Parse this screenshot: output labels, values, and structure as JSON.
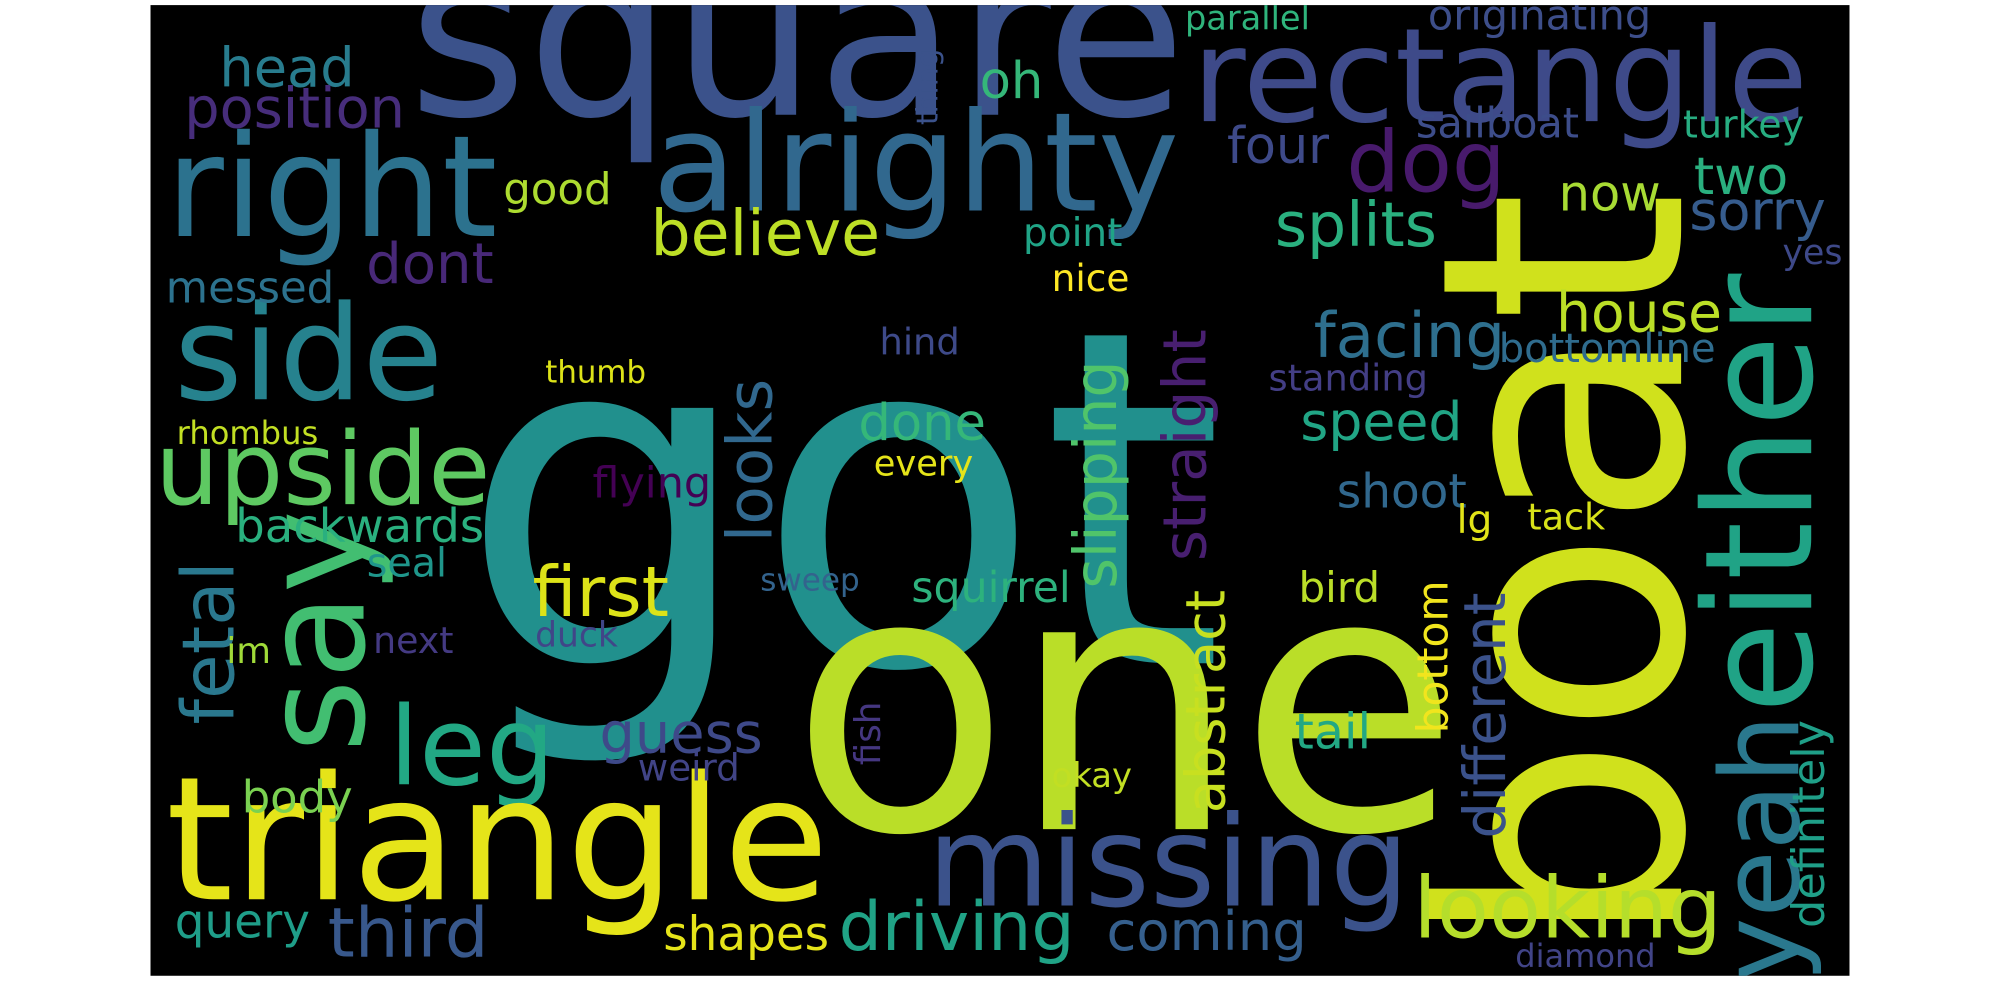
{
  "words": [
    {
      "text": "got",
      "color": "#21908d"
    },
    {
      "text": "one",
      "color": "#bade28"
    },
    {
      "text": "boat",
      "color": "#d0e11c"
    },
    {
      "text": "square",
      "color": "#3b528b"
    },
    {
      "text": "rectangle",
      "color": "#3e4a89"
    },
    {
      "text": "alrighty",
      "color": "#31688e"
    },
    {
      "text": "right",
      "color": "#2c728e"
    },
    {
      "text": "dog",
      "color": "#481a6c"
    },
    {
      "text": "head",
      "color": "#287c8e"
    },
    {
      "text": "position",
      "color": "#472d7b"
    },
    {
      "text": "oh",
      "color": "#35b779"
    },
    {
      "text": "side",
      "color": "#26828e"
    },
    {
      "text": "upside",
      "color": "#5ec962"
    },
    {
      "text": "say",
      "color": "#42be71"
    },
    {
      "text": "leg",
      "color": "#22a884"
    },
    {
      "text": "triangle",
      "color": "#e5e419"
    },
    {
      "text": "missing",
      "color": "#3b528b"
    },
    {
      "text": "yeah",
      "color": "#2a788e"
    },
    {
      "text": "either",
      "color": "#20a386"
    },
    {
      "text": "looking",
      "color": "#b5de2b"
    },
    {
      "text": "driving",
      "color": "#20a386"
    },
    {
      "text": "coming",
      "color": "#355f8d"
    },
    {
      "text": "third",
      "color": "#38588c"
    },
    {
      "text": "shapes",
      "color": "#e5e419"
    },
    {
      "text": "query",
      "color": "#1f9e89"
    },
    {
      "text": "body",
      "color": "#7ad151"
    },
    {
      "text": "weird",
      "color": "#414487"
    },
    {
      "text": "guess",
      "color": "#3e4989"
    },
    {
      "text": "fetal",
      "color": "#2a788e"
    },
    {
      "text": "im",
      "color": "#a0da39"
    },
    {
      "text": "backwards",
      "color": "#2ab07f"
    },
    {
      "text": "seal",
      "color": "#1f968b"
    },
    {
      "text": "next",
      "color": "#443a83"
    },
    {
      "text": "rhombus",
      "color": "#c2df23"
    },
    {
      "text": "messed",
      "color": "#2c728e"
    },
    {
      "text": "dont",
      "color": "#482878"
    },
    {
      "text": "good",
      "color": "#addc30"
    },
    {
      "text": "believe",
      "color": "#bddf26"
    },
    {
      "text": "looks",
      "color": "#31688e"
    },
    {
      "text": "done",
      "color": "#35b779"
    },
    {
      "text": "thumb",
      "color": "#dde318"
    },
    {
      "text": "flying",
      "color": "#440154"
    },
    {
      "text": "first",
      "color": "#dde318"
    },
    {
      "text": "sweep",
      "color": "#33638d"
    },
    {
      "text": "squirrel",
      "color": "#2db27d"
    },
    {
      "text": "duck",
      "color": "#404688"
    },
    {
      "text": "fish",
      "color": "#453781"
    },
    {
      "text": "okay",
      "color": "#c2df23"
    },
    {
      "text": "every",
      "color": "#e5e419"
    },
    {
      "text": "hind",
      "color": "#3e4a89"
    },
    {
      "text": "nice",
      "color": "#fde725"
    },
    {
      "text": "point",
      "color": "#20a486"
    },
    {
      "text": "thing",
      "color": "#3b528b"
    },
    {
      "text": "parallel",
      "color": "#2fb47c"
    },
    {
      "text": "originating",
      "color": "#3d4e8a"
    },
    {
      "text": "four",
      "color": "#3e4a89"
    },
    {
      "text": "now",
      "color": "#a8db34"
    },
    {
      "text": "two",
      "color": "#2ab07f"
    },
    {
      "text": "sorry",
      "color": "#365c8d"
    },
    {
      "text": "splits",
      "color": "#2ab07f"
    },
    {
      "text": "sailboat",
      "color": "#3d4d8a"
    },
    {
      "text": "turkey",
      "color": "#27ad81"
    },
    {
      "text": "yes",
      "color": "#3e4989"
    },
    {
      "text": "house",
      "color": "#bbdf27"
    },
    {
      "text": "facing",
      "color": "#2e6f8e"
    },
    {
      "text": "bottomline",
      "color": "#2f6c8e"
    },
    {
      "text": "standing",
      "color": "#433e85"
    },
    {
      "text": "speed",
      "color": "#21a585"
    },
    {
      "text": "shoot",
      "color": "#31688e"
    },
    {
      "text": "lg",
      "color": "#e2e418"
    },
    {
      "text": "tack",
      "color": "#d8e219"
    },
    {
      "text": "bird",
      "color": "#bade28"
    },
    {
      "text": "straight",
      "color": "#481f70"
    },
    {
      "text": "slipping",
      "color": "#50c46a"
    },
    {
      "text": "abstract",
      "color": "#c8e020"
    },
    {
      "text": "bottom",
      "color": "#f1e51d"
    },
    {
      "text": "different",
      "color": "#3b528b"
    },
    {
      "text": "definitely",
      "color": "#1f9f88"
    },
    {
      "text": "tail",
      "color": "#22a884"
    },
    {
      "text": "diamond",
      "color": "#414487"
    }
  ]
}
